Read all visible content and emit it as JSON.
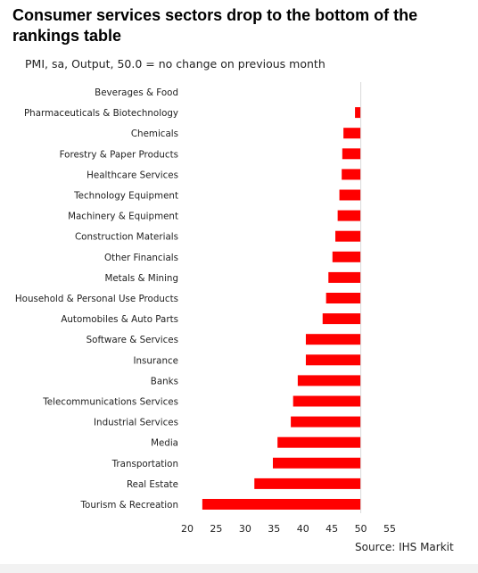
{
  "header": {
    "title": "Consumer services sectors drop to the bottom of the rankings table",
    "subtitle": "PMI, sa, Output, 50.0 = no change on previous month"
  },
  "footer": {
    "source": "Source: IHS Markit"
  },
  "colors": {
    "bar": "#ff0000",
    "axis": "#d9d9d9",
    "text": "#222222"
  },
  "chart_data": {
    "type": "bar",
    "orientation": "horizontal",
    "baseline": 50,
    "xlim": [
      20,
      55
    ],
    "xticks": [
      20,
      25,
      30,
      35,
      40,
      45,
      50,
      55
    ],
    "grid": false,
    "categories": [
      "Beverages & Food",
      "Pharmaceuticals & Biotechnology",
      "Chemicals",
      "Forestry & Paper Products",
      "Healthcare Services",
      "Technology Equipment",
      "Machinery & Equipment",
      "Construction Materials",
      "Other Financials",
      "Metals & Mining",
      "Household & Personal Use Products",
      "Automobiles & Auto Parts",
      "Software & Services",
      "Insurance",
      "Banks",
      "Telecommunications Services",
      "Industrial Services",
      "Media",
      "Transportation",
      "Real Estate",
      "Tourism & Recreation"
    ],
    "values": [
      50.0,
      49.0,
      47.0,
      46.8,
      46.7,
      46.3,
      46.0,
      45.6,
      45.1,
      44.4,
      44.0,
      43.4,
      40.5,
      40.5,
      39.1,
      38.3,
      37.9,
      35.6,
      34.8,
      31.6,
      22.6
    ]
  }
}
